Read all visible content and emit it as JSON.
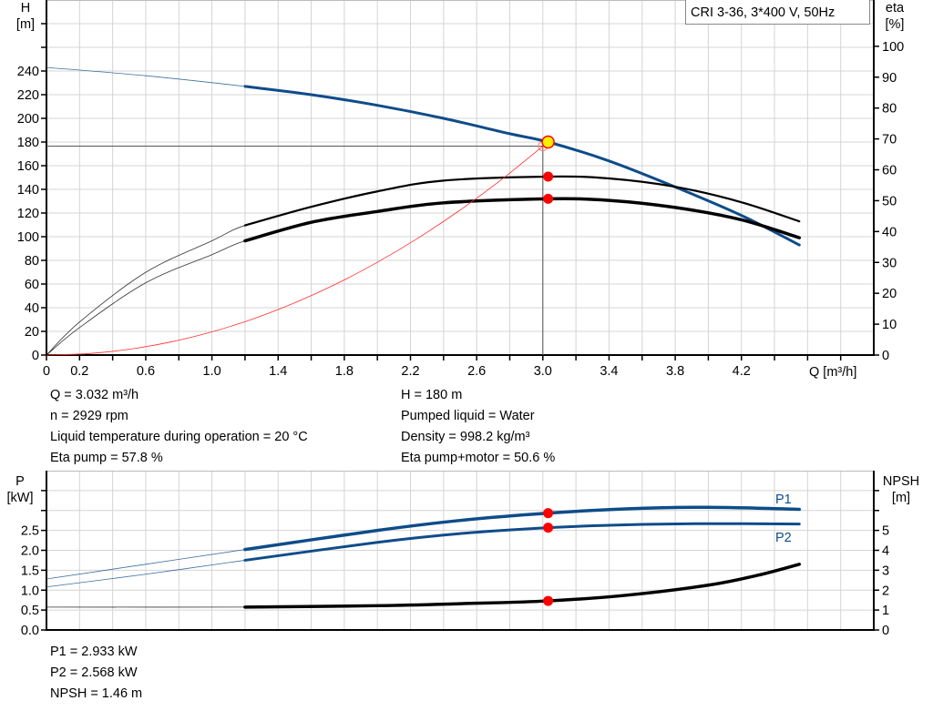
{
  "chart_data": [
    {
      "type": "line",
      "title": "CRI 3-36, 3*400 V, 50Hz",
      "xlabel": "Q [m³/h]",
      "ylabel_left": [
        "H",
        "[m]"
      ],
      "ylabel_right": [
        "eta",
        "[%]"
      ],
      "xlim": [
        0,
        5.0
      ],
      "ylim_left": [
        0,
        300
      ],
      "ylim_right": [
        0,
        115
      ],
      "x_ticks": [
        0,
        0.2,
        0.4,
        0.6,
        0.8,
        1.0,
        1.2,
        1.4,
        1.6,
        1.8,
        2.0,
        2.2,
        2.4,
        2.6,
        2.8,
        3.0,
        3.2,
        3.4,
        3.6,
        3.8,
        4.0,
        4.2,
        4.4,
        4.6,
        4.8
      ],
      "x_tick_labels": [
        "0",
        "0.2",
        "0.6",
        "1.0",
        "1.4",
        "1.8",
        "2.2",
        "2.6",
        "3.0",
        "3.4",
        "3.8",
        "4.2"
      ],
      "y_left_ticks": [
        0,
        20,
        40,
        60,
        80,
        100,
        120,
        140,
        160,
        180,
        200,
        220,
        240,
        260,
        280
      ],
      "y_left_tick_labels": [
        "0",
        "20",
        "40",
        "60",
        "80",
        "100",
        "120",
        "140",
        "160",
        "180",
        "200",
        "220",
        "240"
      ],
      "y_right_ticks": [
        0,
        10,
        20,
        30,
        40,
        50,
        60,
        70,
        80,
        90,
        100
      ],
      "y_right_tick_labels": [
        "0",
        "10",
        "20",
        "30",
        "40",
        "50",
        "60",
        "70",
        "80",
        "90",
        "100"
      ],
      "grid": true,
      "series": [
        {
          "axis": "left",
          "color": "#0e4c8a",
          "thin_until": 1.2,
          "x": [
            0,
            0.6,
            1.2,
            1.6,
            2.0,
            2.4,
            2.8,
            3.032,
            3.4,
            3.8,
            4.2,
            4.55
          ],
          "y": [
            243,
            236,
            227,
            220,
            211,
            200,
            187,
            180,
            164,
            142,
            118,
            93
          ]
        },
        {
          "axis": "right",
          "color": "#000000",
          "thin_until": 1.2,
          "x": [
            0,
            0.2,
            0.6,
            1.0,
            1.2,
            1.6,
            2.0,
            2.4,
            3.032,
            3.4,
            3.8,
            4.2,
            4.55
          ],
          "y": [
            0,
            10.7,
            26.8,
            37,
            42,
            48,
            53,
            56.5,
            57.8,
            57.2,
            54.5,
            49.5,
            43.3
          ]
        },
        {
          "axis": "right",
          "color": "#000000",
          "thin_until": 1.2,
          "heavy": true,
          "x": [
            0,
            0.2,
            0.6,
            1.0,
            1.2,
            1.6,
            2.0,
            2.4,
            3.032,
            3.4,
            3.8,
            4.2,
            4.55
          ],
          "y": [
            0,
            8.9,
            23.4,
            32.5,
            37,
            43,
            46.5,
            49.3,
            50.6,
            50.1,
            47.8,
            43.8,
            38
          ]
        },
        {
          "axis": "left",
          "color": "#ff3030",
          "system_curve": true,
          "x": [
            0,
            0.25,
            0.5,
            0.75,
            1.0,
            1.25,
            1.5,
            1.75,
            2.0,
            2.25,
            2.5,
            2.75,
            3.0
          ],
          "y": [
            0,
            1.2,
            4.9,
            11.0,
            19.6,
            30.6,
            44.1,
            60.0,
            78.4,
            99.2,
            122.5,
            148.2,
            176.5
          ]
        }
      ],
      "duty_point": {
        "x": 3.0,
        "y": 176.5
      },
      "operating_point": {
        "x": 3.032,
        "y": 180,
        "fill": "#ffee00",
        "stroke": "#ff0000"
      },
      "markers": [
        {
          "axis": "right",
          "x": 3.032,
          "y": 57.8,
          "color": "#ff0000"
        },
        {
          "axis": "right",
          "x": 3.032,
          "y": 50.6,
          "color": "#ff0000"
        }
      ]
    },
    {
      "type": "line",
      "xlim": [
        0,
        5.0
      ],
      "ylabel_left": [
        "P",
        "[kW]"
      ],
      "ylabel_right": [
        "NPSH",
        "[m]"
      ],
      "ylim_left": [
        0,
        4.0
      ],
      "ylim_right": [
        0,
        8
      ],
      "x_ticks": [
        0,
        0.2,
        0.4,
        0.6,
        0.8,
        1.0,
        1.2,
        1.4,
        1.6,
        1.8,
        2.0,
        2.2,
        2.4,
        2.6,
        2.8,
        3.0,
        3.2,
        3.4,
        3.6,
        3.8,
        4.0,
        4.2,
        4.4,
        4.6,
        4.8
      ],
      "y_left_ticks": [
        0,
        0.5,
        1.0,
        1.5,
        2.0,
        2.5,
        3.0,
        3.5
      ],
      "y_left_tick_labels": [
        "0.0",
        "0.5",
        "1.0",
        "1.5",
        "2.0",
        "2.5"
      ],
      "y_right_ticks": [
        0,
        1,
        2,
        3,
        4,
        5,
        6,
        7
      ],
      "y_right_tick_labels": [
        "0",
        "1",
        "2",
        "3",
        "4",
        "5"
      ],
      "grid": true,
      "series": [
        {
          "name": "P1",
          "axis": "left",
          "color": "#0e4c8a",
          "thin_until": 1.2,
          "heavy": true,
          "x": [
            0,
            0.6,
            1.2,
            2.0,
            2.5,
            3.032,
            3.5,
            4.0,
            4.55
          ],
          "y": [
            1.28,
            1.65,
            2.02,
            2.5,
            2.75,
            2.933,
            3.04,
            3.08,
            3.03
          ]
        },
        {
          "name": "P2",
          "axis": "left",
          "color": "#0e4c8a",
          "thin_until": 1.2,
          "x": [
            0,
            0.6,
            1.2,
            2.0,
            2.5,
            3.032,
            3.5,
            4.0,
            4.55
          ],
          "y": [
            1.08,
            1.4,
            1.75,
            2.2,
            2.42,
            2.568,
            2.64,
            2.67,
            2.66
          ]
        },
        {
          "axis": "right",
          "color": "#000000",
          "thin_until": 1.2,
          "heavy": true,
          "x": [
            0,
            1.2,
            2.0,
            2.5,
            3.032,
            3.5,
            4.0,
            4.3,
            4.55
          ],
          "y": [
            1.15,
            1.15,
            1.22,
            1.32,
            1.46,
            1.74,
            2.25,
            2.75,
            3.3
          ]
        }
      ],
      "markers": [
        {
          "axis": "left",
          "x": 3.032,
          "y": 2.933,
          "color": "#ff0000"
        },
        {
          "axis": "left",
          "x": 3.032,
          "y": 2.568,
          "color": "#ff0000"
        },
        {
          "axis": "right",
          "x": 3.032,
          "y": 1.46,
          "color": "#ff0000"
        }
      ]
    }
  ],
  "legend_label": "CRI 3-36, 3*400 V, 50Hz",
  "info_top_left": [
    "Q = 3.032 m³/h",
    "n = 2929 rpm",
    "Liquid temperature during operation = 20 °C",
    "Eta pump = 57.8 %"
  ],
  "info_top_right": [
    "H = 180 m",
    "Pumped liquid = Water",
    "Density = 998.2 kg/m³",
    "Eta pump+motor = 50.6 %"
  ],
  "info_bottom": [
    "P1 = 2.933 kW",
    "P2 = 2.568 kW",
    "NPSH = 1.46 m"
  ],
  "labels": {
    "H": "H",
    "H_unit": "[m]",
    "eta": "eta",
    "eta_unit": "[%]",
    "Q": "Q [m³/h]",
    "P": "P",
    "P_unit": "[kW]",
    "NPSH": "NPSH",
    "NPSH_unit": "[m]",
    "P1": "P1",
    "P2": "P2"
  }
}
